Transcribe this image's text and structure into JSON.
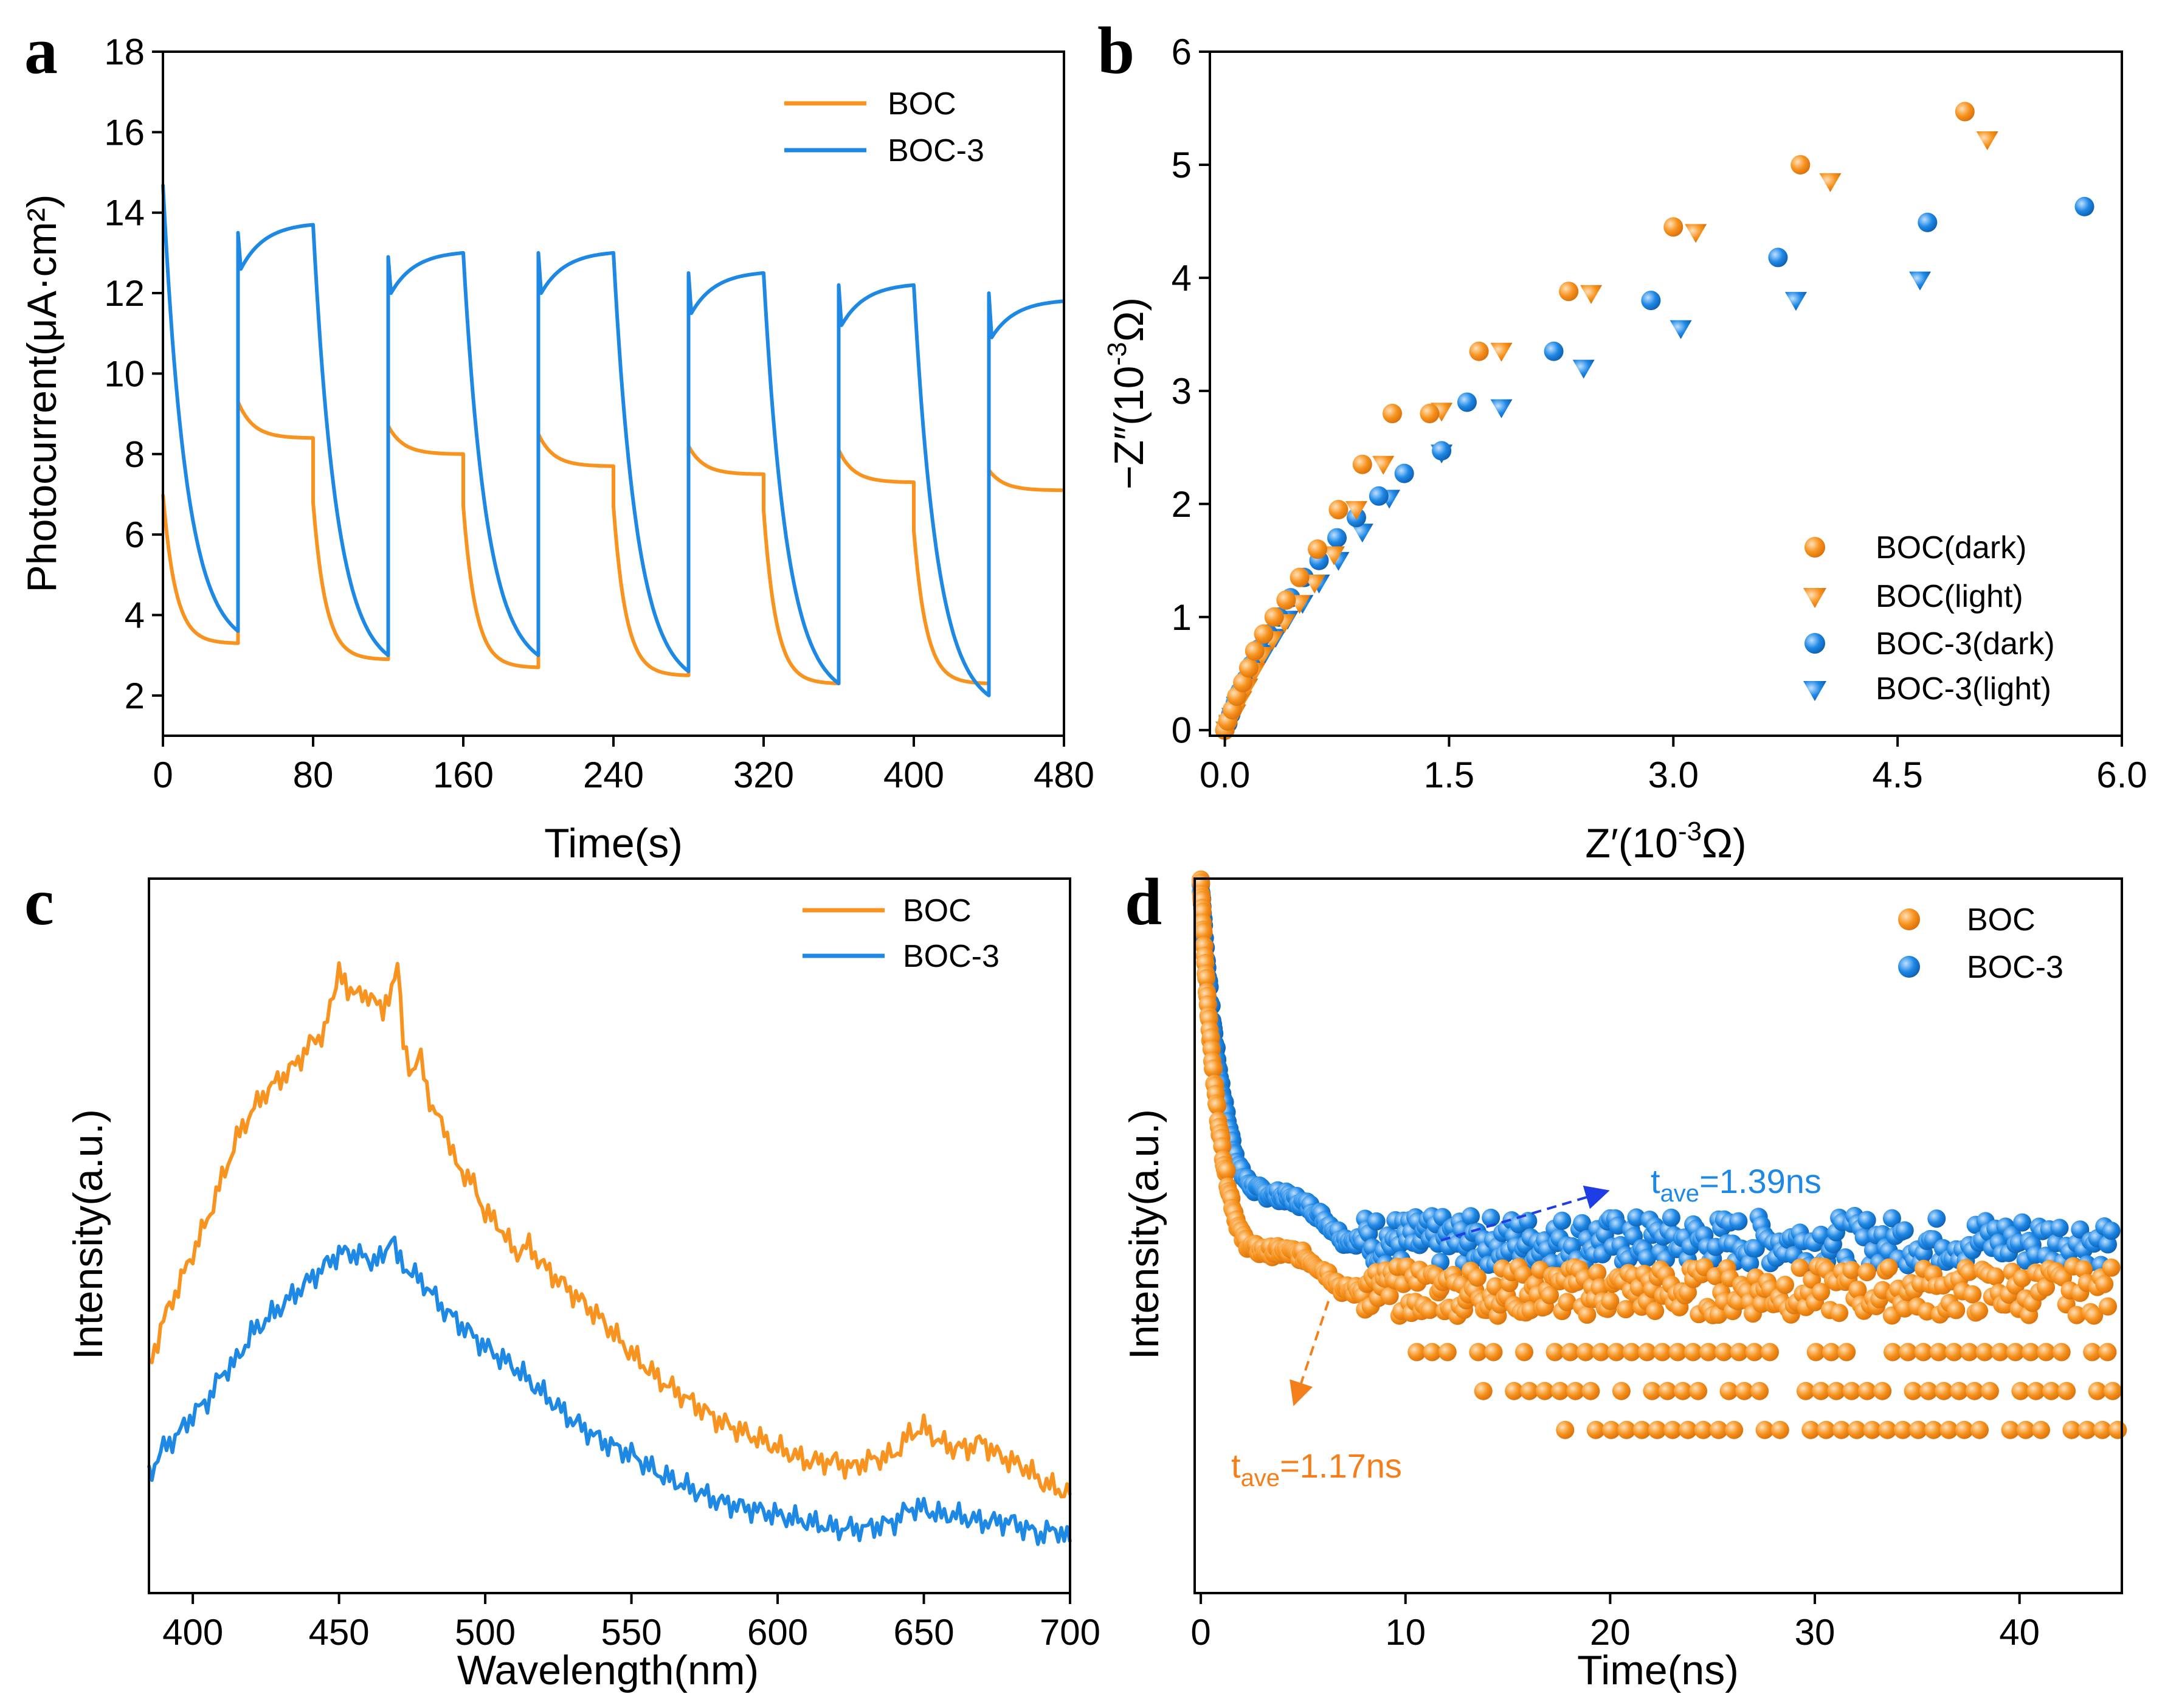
{
  "colors": {
    "orange": "#F7931E",
    "blue": "#1E88E5",
    "orange_dark": "#F47F1A",
    "blue_dark": "#1565C0"
  },
  "chart_data": [
    {
      "panel": "a",
      "type": "line",
      "xlabel": "Time(s)",
      "ylabel": "Photocurrent(μA·cm²)",
      "xlim": [
        0,
        480
      ],
      "ylim": [
        1,
        18
      ],
      "xticks": [
        0,
        80,
        160,
        240,
        320,
        400,
        480
      ],
      "yticks": [
        2,
        4,
        6,
        8,
        10,
        12,
        14,
        16,
        18
      ],
      "on_off_period_s": 40,
      "legend": [
        "BOC",
        "BOC-3"
      ],
      "series": [
        {
          "name": "BOC",
          "color": "#F7931E",
          "light_on_start_s": [
            40,
            120,
            200,
            280,
            360,
            440
          ],
          "light_on_peak": [
            9.3,
            8.7,
            8.5,
            8.2,
            8.1,
            7.6
          ],
          "light_on_end": [
            8.4,
            8.0,
            7.7,
            7.5,
            7.3,
            7.1
          ],
          "dark_start_s": [
            0,
            80,
            160,
            240,
            320,
            400
          ],
          "dark_start": [
            7.0,
            6.8,
            6.7,
            6.7,
            6.6,
            6.1
          ],
          "dark_end": [
            3.3,
            2.9,
            2.7,
            2.5,
            2.3,
            2.3
          ]
        },
        {
          "name": "BOC-3",
          "color": "#1E88E5",
          "light_on_start_s": [
            40,
            120,
            200,
            280,
            360,
            440
          ],
          "light_on_peak": [
            13.5,
            12.9,
            13.0,
            12.5,
            12.2,
            12.0
          ],
          "light_on_start_level": [
            12.6,
            12.0,
            12.0,
            11.5,
            11.2,
            10.9
          ],
          "light_on_end": [
            13.7,
            13.0,
            13.0,
            12.5,
            12.2,
            11.8
          ],
          "dark_start_s": [
            0,
            80,
            160,
            240,
            320,
            400
          ],
          "dark_start": [
            14.7,
            13.7,
            13.0,
            13.0,
            12.5,
            12.2
          ],
          "dark_end": [
            3.6,
            3.0,
            3.0,
            2.6,
            2.3,
            2.0
          ]
        }
      ]
    },
    {
      "panel": "b",
      "type": "scatter",
      "xlabel_pre": "Z′(10",
      "xlabel_sup": "-3",
      "xlabel_post": "Ω)",
      "ylabel_pre": "−Z″(10",
      "ylabel_sup": "-3",
      "ylabel_post": "Ω)",
      "xlim": [
        -0.1,
        6.0
      ],
      "ylim": [
        -0.05,
        6
      ],
      "xticks": [
        "0.0",
        "1.5",
        "3.0",
        "4.5",
        "6.0"
      ],
      "yticks": [
        "0",
        "1",
        "2",
        "3",
        "4",
        "5",
        "6"
      ],
      "legend": [
        "BOC(dark)",
        "BOC(light)",
        "BOC-3(dark)",
        "BOC-3(light)"
      ],
      "series": [
        {
          "name": "BOC(dark)",
          "marker": "circle",
          "color": "#F7931E",
          "x": [
            0.0,
            0.02,
            0.05,
            0.08,
            0.12,
            0.16,
            0.2,
            0.26,
            0.33,
            0.41,
            0.5,
            0.62,
            0.76,
            0.92,
            1.12,
            1.37,
            1.7,
            2.3,
            3.0,
            3.85,
            4.95
          ],
          "y": [
            0.0,
            0.08,
            0.18,
            0.3,
            0.42,
            0.55,
            0.7,
            0.85,
            1.0,
            1.15,
            1.35,
            1.6,
            1.95,
            2.35,
            2.8,
            2.8,
            3.35,
            3.88,
            4.45,
            5.0,
            5.47
          ]
        },
        {
          "name": "BOC(light)",
          "marker": "triangle",
          "color": "#F7931E",
          "x": [
            0.01,
            0.03,
            0.07,
            0.11,
            0.15,
            0.2,
            0.25,
            0.32,
            0.4,
            0.5,
            0.6,
            0.73,
            0.88,
            1.06,
            1.45,
            1.85,
            2.45,
            3.15,
            4.05,
            5.1
          ],
          "y": [
            0.0,
            0.06,
            0.15,
            0.27,
            0.38,
            0.52,
            0.66,
            0.8,
            0.95,
            1.12,
            1.3,
            1.55,
            1.95,
            2.35,
            2.82,
            3.35,
            3.86,
            4.4,
            4.85,
            5.22
          ]
        },
        {
          "name": "BOC-3(dark)",
          "marker": "circle",
          "color": "#1E88E5",
          "x": [
            0.0,
            0.02,
            0.04,
            0.07,
            0.1,
            0.14,
            0.18,
            0.23,
            0.29,
            0.36,
            0.44,
            0.53,
            0.63,
            0.75,
            0.88,
            1.03,
            1.2,
            1.45,
            1.62,
            2.2,
            2.85,
            3.7,
            4.7,
            5.75
          ],
          "y": [
            0.0,
            0.06,
            0.14,
            0.24,
            0.34,
            0.45,
            0.58,
            0.72,
            0.85,
            1.0,
            1.17,
            1.35,
            1.5,
            1.7,
            1.88,
            2.07,
            2.27,
            2.47,
            2.9,
            3.35,
            3.8,
            4.18,
            4.49,
            4.63
          ]
        },
        {
          "name": "BOC-3(light)",
          "marker": "triangle",
          "color": "#1E88E5",
          "x": [
            0.01,
            0.03,
            0.05,
            0.08,
            0.12,
            0.16,
            0.21,
            0.27,
            0.34,
            0.42,
            0.52,
            0.63,
            0.76,
            0.92,
            1.1,
            1.45,
            1.85,
            2.4,
            3.05,
            3.82,
            4.65
          ],
          "y": [
            0.0,
            0.05,
            0.12,
            0.22,
            0.32,
            0.43,
            0.55,
            0.68,
            0.82,
            0.98,
            1.12,
            1.3,
            1.5,
            1.75,
            2.05,
            2.45,
            2.85,
            3.2,
            3.55,
            3.8,
            3.98
          ]
        }
      ]
    },
    {
      "panel": "c",
      "type": "line",
      "xlabel": "Wavelength(nm)",
      "ylabel": "Intensity(a.u.)",
      "xlim": [
        385,
        700
      ],
      "ylim": [
        0,
        1
      ],
      "xticks": [
        400,
        450,
        500,
        550,
        600,
        650,
        700
      ],
      "legend": [
        "BOC",
        "BOC-3"
      ],
      "series": [
        {
          "name": "BOC",
          "color": "#F7931E",
          "x": [
            385,
            390,
            395,
            400,
            405,
            410,
            415,
            420,
            425,
            430,
            435,
            440,
            445,
            448,
            450,
            453,
            456,
            459,
            462,
            465,
            468,
            470,
            472,
            475,
            478,
            482,
            486,
            490,
            495,
            500,
            505,
            510,
            515,
            520,
            530,
            540,
            550,
            560,
            570,
            580,
            590,
            600,
            610,
            620,
            625,
            630,
            640,
            645,
            650,
            655,
            660,
            665,
            670,
            675,
            680,
            685,
            690,
            695,
            700
          ],
          "y": [
            0.3,
            0.37,
            0.42,
            0.47,
            0.52,
            0.58,
            0.64,
            0.68,
            0.71,
            0.73,
            0.75,
            0.78,
            0.8,
            0.85,
            0.9,
            0.85,
            0.87,
            0.84,
            0.86,
            0.82,
            0.87,
            0.9,
            0.78,
            0.74,
            0.76,
            0.68,
            0.66,
            0.6,
            0.58,
            0.53,
            0.51,
            0.47,
            0.48,
            0.45,
            0.41,
            0.37,
            0.32,
            0.28,
            0.25,
            0.22,
            0.2,
            0.18,
            0.16,
            0.16,
            0.15,
            0.16,
            0.17,
            0.2,
            0.21,
            0.19,
            0.18,
            0.18,
            0.19,
            0.17,
            0.16,
            0.15,
            0.13,
            0.12,
            0.11
          ]
        },
        {
          "name": "BOC-3",
          "color": "#1E88E5",
          "x": [
            385,
            390,
            395,
            400,
            405,
            410,
            415,
            420,
            425,
            430,
            435,
            440,
            445,
            450,
            455,
            460,
            465,
            468,
            470,
            475,
            480,
            485,
            490,
            495,
            500,
            510,
            520,
            530,
            540,
            550,
            560,
            570,
            580,
            590,
            600,
            610,
            620,
            630,
            640,
            645,
            650,
            655,
            660,
            670,
            680,
            690,
            695,
            700
          ],
          "y": [
            0.14,
            0.18,
            0.2,
            0.23,
            0.25,
            0.29,
            0.31,
            0.35,
            0.37,
            0.39,
            0.41,
            0.43,
            0.45,
            0.47,
            0.47,
            0.46,
            0.46,
            0.5,
            0.46,
            0.44,
            0.42,
            0.39,
            0.37,
            0.35,
            0.33,
            0.3,
            0.26,
            0.22,
            0.19,
            0.17,
            0.14,
            0.12,
            0.1,
            0.09,
            0.08,
            0.07,
            0.06,
            0.06,
            0.07,
            0.09,
            0.09,
            0.08,
            0.08,
            0.07,
            0.07,
            0.05,
            0.06,
            0.04
          ]
        }
      ]
    },
    {
      "panel": "d",
      "type": "scatter",
      "xlabel": "Time(ns)",
      "ylabel": "Intensity(a.u.)",
      "xlim": [
        -0.3,
        45
      ],
      "xticks": [
        0,
        10,
        20,
        30,
        40
      ],
      "legend": [
        "BOC",
        "BOC-3"
      ],
      "annotations": [
        {
          "label_base": "t",
          "label_sub": "ave",
          "label_value": "=1.39ns",
          "color": "#1E88E5"
        },
        {
          "label_base": "t",
          "label_sub": "ave",
          "label_value": "=1.17ns",
          "color": "#F47F1A"
        }
      ],
      "series": [
        {
          "name": "BOC-3",
          "color": "#1E88E5",
          "tau_ave_ns": 1.39
        },
        {
          "name": "BOC",
          "color": "#F7931E",
          "tau_ave_ns": 1.17
        }
      ]
    }
  ]
}
